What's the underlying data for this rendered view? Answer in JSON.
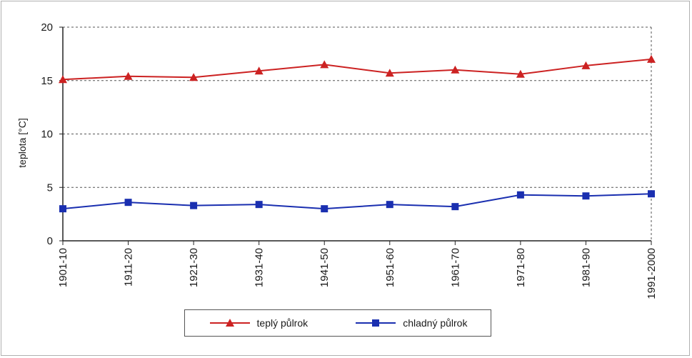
{
  "chart_data": {
    "type": "line",
    "title": "",
    "xlabel": "",
    "ylabel": "teplota [°C]",
    "ylim": [
      0,
      20
    ],
    "yticks": [
      "0",
      "5",
      "10",
      "15",
      "20"
    ],
    "categories": [
      "1901-10",
      "1911-20",
      "1921-30",
      "1931-40",
      "1941-50",
      "1951-60",
      "1961-70",
      "1971-80",
      "1981-90",
      "1991-2000"
    ],
    "grid": "horizontal dashed",
    "legend_position": "bottom",
    "series": [
      {
        "name": "teplý půlrok",
        "color": "#cc2222",
        "marker": "triangle",
        "values": [
          15.1,
          15.4,
          15.3,
          15.9,
          16.5,
          15.7,
          16.0,
          15.6,
          16.4,
          17.0
        ]
      },
      {
        "name": "chladný půlrok",
        "color": "#1a2fb0",
        "marker": "square",
        "values": [
          3.0,
          3.6,
          3.3,
          3.4,
          3.0,
          3.4,
          3.2,
          4.3,
          4.2,
          4.4
        ]
      }
    ]
  }
}
